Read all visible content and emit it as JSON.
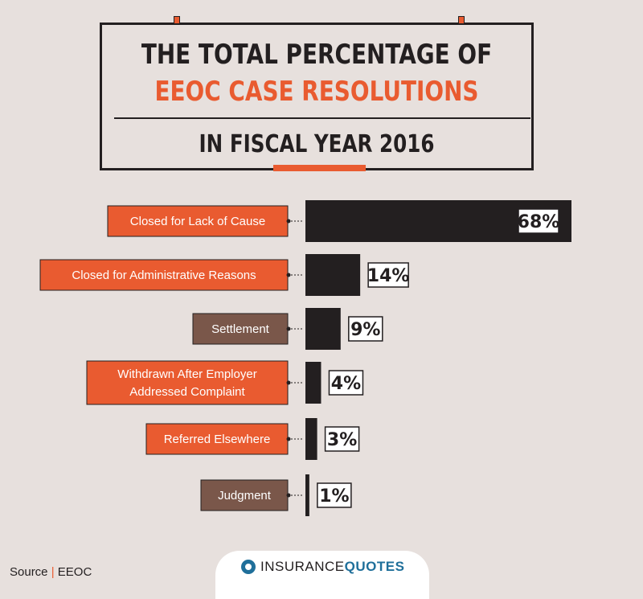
{
  "title": {
    "line1": "THE TOTAL PERCENTAGE OF",
    "line2": "EEOC CASE RESOLUTIONS",
    "line3": "IN FISCAL YEAR 2016"
  },
  "chart_data": {
    "type": "bar",
    "orientation": "horizontal",
    "categories": [
      [
        "Closed for Lack of Cause"
      ],
      [
        "Closed for Administrative Reasons"
      ],
      [
        "Settlement"
      ],
      [
        "Withdrawn After Employer",
        "Addressed Complaint"
      ],
      [
        "Referred Elsewhere"
      ],
      [
        "Judgment"
      ]
    ],
    "values": [
      68,
      14,
      9,
      4,
      3,
      1
    ],
    "value_labels": [
      "68%",
      "14%",
      "9%",
      "4%",
      "3%",
      "1%"
    ],
    "label_colors": [
      "#e95b30",
      "#e95b30",
      "#7a574a",
      "#e95b30",
      "#e95b30",
      "#7a574a"
    ],
    "bar_color": "#231f20",
    "xlim": [
      0,
      68
    ]
  },
  "source": {
    "label": "Source",
    "separator": "|",
    "value": "EEOC"
  },
  "logo": {
    "word1": "INSURANCE",
    "word2": "QUOTES"
  },
  "colors": {
    "accent": "#e95b30",
    "muted": "#7a574a",
    "ink": "#231f20",
    "background": "#e7e0dd"
  }
}
